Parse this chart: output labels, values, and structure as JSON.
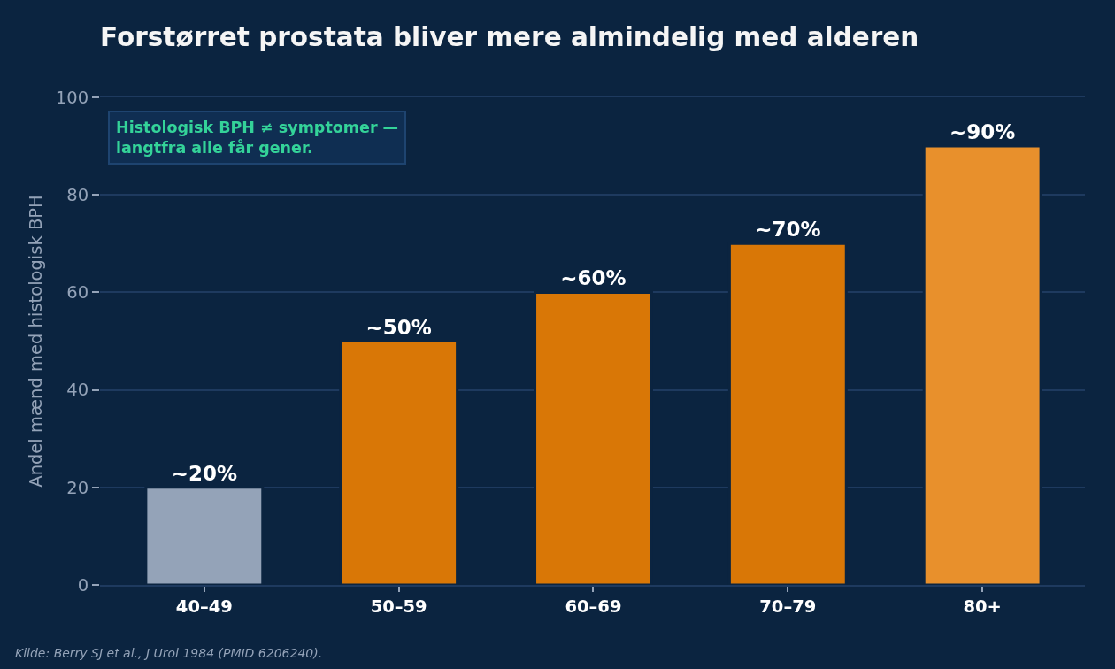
{
  "chart_data": {
    "type": "bar",
    "title": "Forstørret prostata bliver mere almindelig med alderen",
    "ylabel": "Andel mænd med histologisk BPH",
    "categories": [
      "40–49",
      "50–59",
      "60–69",
      "70–79",
      "80+"
    ],
    "values": [
      20,
      50,
      60,
      70,
      90
    ],
    "colors": [
      "#94a3b8",
      "#d97706",
      "#d97706",
      "#d97706",
      "#e8902c"
    ],
    "value_labels": [
      "~20%",
      "~50%",
      "~60%",
      "~70%",
      "~90%"
    ],
    "ylim": [
      0,
      100
    ],
    "yticks": [
      0,
      20,
      40,
      60,
      80,
      100
    ],
    "grid": "y",
    "annotations": [
      "Histologisk BPH ≠ symptomer —\nlangtfra alle får gener.",
      "Kilde: Berry SJ et al., J Urol 1984 (PMID 6206240)."
    ]
  }
}
